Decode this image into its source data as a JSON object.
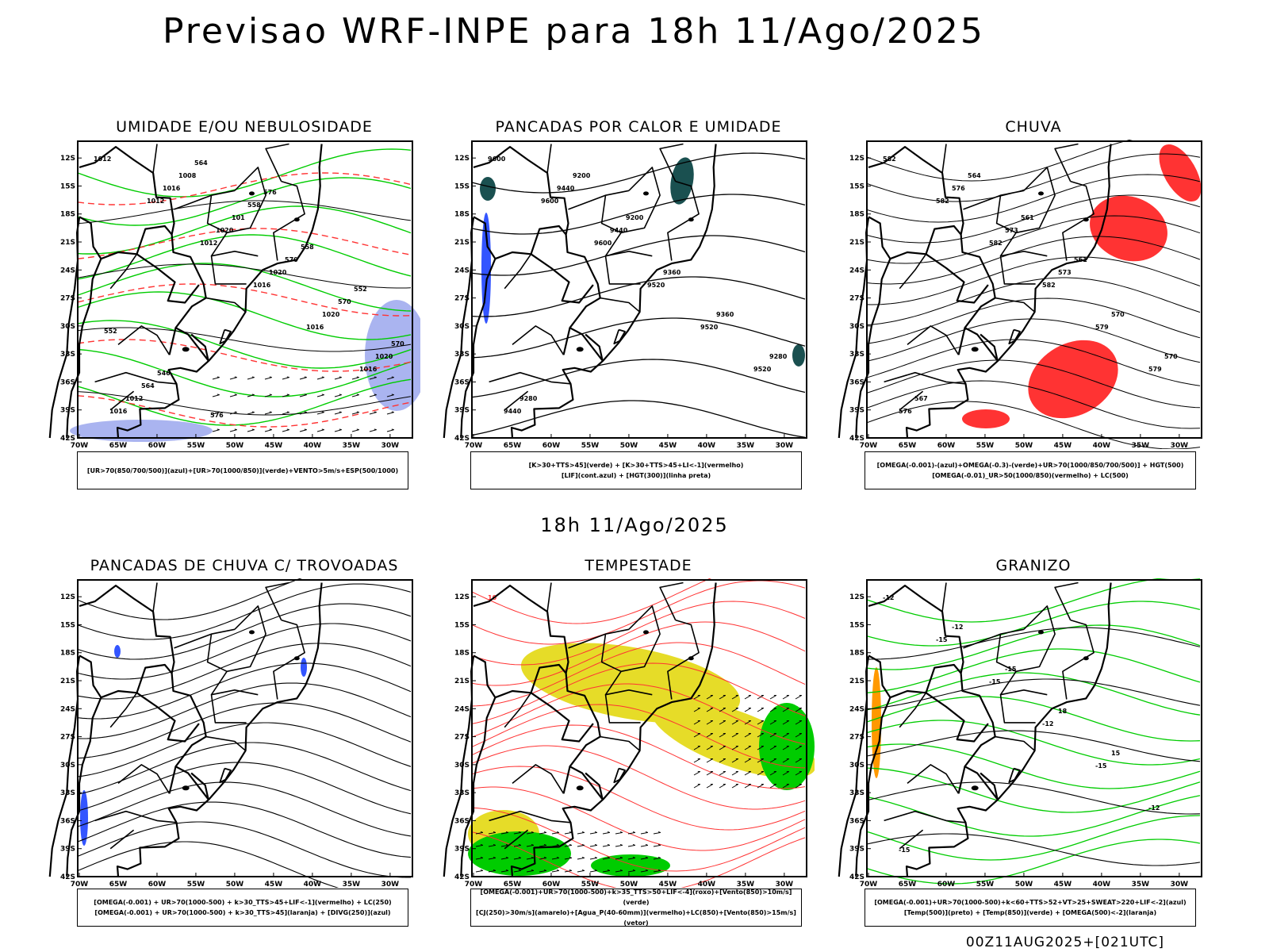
{
  "title": "Previsao WRF-INPE  para 18h 11/Ago/2025",
  "middle_title": "18h 11/Ago/2025",
  "footer": "00Z11AUG2025+[021UTC]",
  "lat_ticks": [
    "12S",
    "15S",
    "18S",
    "21S",
    "24S",
    "27S",
    "30S",
    "33S",
    "36S",
    "39S",
    "42S"
  ],
  "lon_ticks": [
    "70W",
    "65W",
    "60W",
    "55W",
    "50W",
    "45W",
    "40W",
    "35W",
    "30W"
  ],
  "colors": {
    "green": "#00cc00",
    "red": "#ff3333",
    "blue": "#3355ff",
    "yellow": "#e6dc28",
    "teal": "#1a5050",
    "lavender": "#aab4f0",
    "orange": "#ff9900"
  },
  "panels": [
    {
      "id": "umidade",
      "title": "UMIDADE E/OU NEBULOSIDADE",
      "legend": [
        "[UR>70(850/700/500)](azul)+[UR>70(1000/850)](verde)+VENTO>5m/s+ESP(500/1000)"
      ],
      "labels": [
        "1012",
        "1012",
        "1012",
        "1016",
        "1016",
        "1016",
        "1016",
        "1016",
        "1020",
        "1020",
        "1020",
        "1020",
        "1012",
        "1008",
        "101",
        "570",
        "570",
        "570",
        "564",
        "564",
        "558",
        "558",
        "552",
        "552",
        "546",
        "576",
        "576"
      ]
    },
    {
      "id": "pancadas_calor",
      "title": "PANCADAS POR CALOR E UMIDADE",
      "legend": [
        "[K>30+TTS>45](verde) + [K>30+TTS>45+LI<-1](vermelho)",
        "[LIF](cont.azul) + [HGT(300)](linha preta)"
      ],
      "labels": [
        "9600",
        "9600",
        "9600",
        "9520",
        "9520",
        "9520",
        "9440",
        "9440",
        "9440",
        "9360",
        "9360",
        "9280",
        "9280",
        "9200",
        "9200"
      ]
    },
    {
      "id": "chuva",
      "title": "CHUVA",
      "legend": [
        "[OMEGA(-0.001)-(azul)+OMEGA(-0.3)-(verde)+UR>70(1000/850/700/500)] + HGT(500)",
        "[OMEGA(-0.01)_UR>50(1000/850)(vermelho) + LC(500)"
      ],
      "labels": [
        "582",
        "582",
        "582",
        "582",
        "579",
        "579",
        "576",
        "576",
        "573",
        "573",
        "570",
        "570",
        "567",
        "564",
        "561",
        "561"
      ]
    },
    {
      "id": "pancadas_trovoadas",
      "title": "PANCADAS DE CHUVA C/ TROVOADAS",
      "legend": [
        "[OMEGA(-0.001) + UR>70(1000-500) + k>30_TTS>45+LIF<-1](vermelho) + LC(250)",
        "[OMEGA(-0.001) + UR>70(1000-500) + k>30_TTS>45](laranja) + [DIVG(250)](azul)"
      ],
      "labels": []
    },
    {
      "id": "tempestade",
      "title": "TEMPESTADE",
      "legend": [
        "[OMEGA(-0.001)+UR>70(1000-500)+k>35_TTS>50+LIF<-4](roxo)+[Vento(850)>10m/s](verde)",
        "[CJ(250)>30m/s](amarelo)+[Agua_P(40-60mm)](vermelho)+LC(850)+[Vento(850)>15m/s](vetor)"
      ],
      "labels": [
        "10"
      ]
    },
    {
      "id": "granizo",
      "title": "GRANIZO",
      "legend": [
        "[OMEGA(-0.001)+UR>70(1000-500)+k<60+TTS>52+VT>25+SWEAT>220+LIF<-2](azul)",
        "[Temp(500)](preto) + [Temp(850)](verde) + [OMEGA(500)<-2](laranja)"
      ],
      "labels": [
        "-12",
        "-15",
        "-15",
        "-12",
        "-15",
        "-12",
        "-15",
        "-12",
        "-15",
        "18",
        "15"
      ]
    }
  ]
}
